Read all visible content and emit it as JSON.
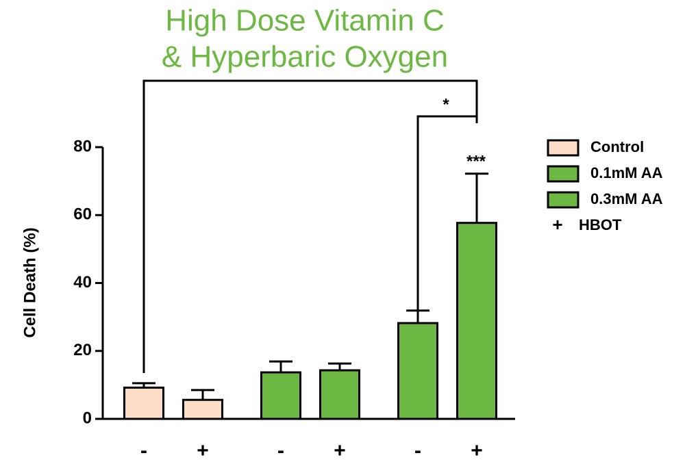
{
  "chart_data": {
    "type": "bar",
    "title": [
      "High Dose Vitamin C",
      "& Hyperbaric Oxygen"
    ],
    "y_label": "Cell Death (%)",
    "categories": [
      "-",
      "+",
      "-",
      "+",
      "-",
      "+"
    ],
    "series": [
      {
        "name": "Control",
        "color": "#fddcc8",
        "values": [
          9.2,
          5.6,
          null,
          null,
          null,
          null
        ],
        "errors": [
          1.3,
          2.9,
          null,
          null,
          null,
          null
        ]
      },
      {
        "name": "0.1mM AA",
        "color": "#6db842",
        "values": [
          null,
          null,
          13.7,
          14.3,
          null,
          null
        ],
        "errors": [
          null,
          null,
          3.2,
          2.0,
          null,
          null
        ]
      },
      {
        "name": "0.3mM AA",
        "color": "#6db842",
        "values": [
          null,
          null,
          null,
          null,
          28.2,
          57.7
        ],
        "errors": [
          null,
          null,
          null,
          null,
          3.7,
          14.5
        ]
      }
    ],
    "legend_note": {
      "symbol": "+",
      "label": "HBOT"
    },
    "annotations": [
      "*",
      "***"
    ],
    "ylim": [
      0,
      80
    ],
    "yticks": [
      0,
      20,
      40,
      60,
      80
    ]
  }
}
